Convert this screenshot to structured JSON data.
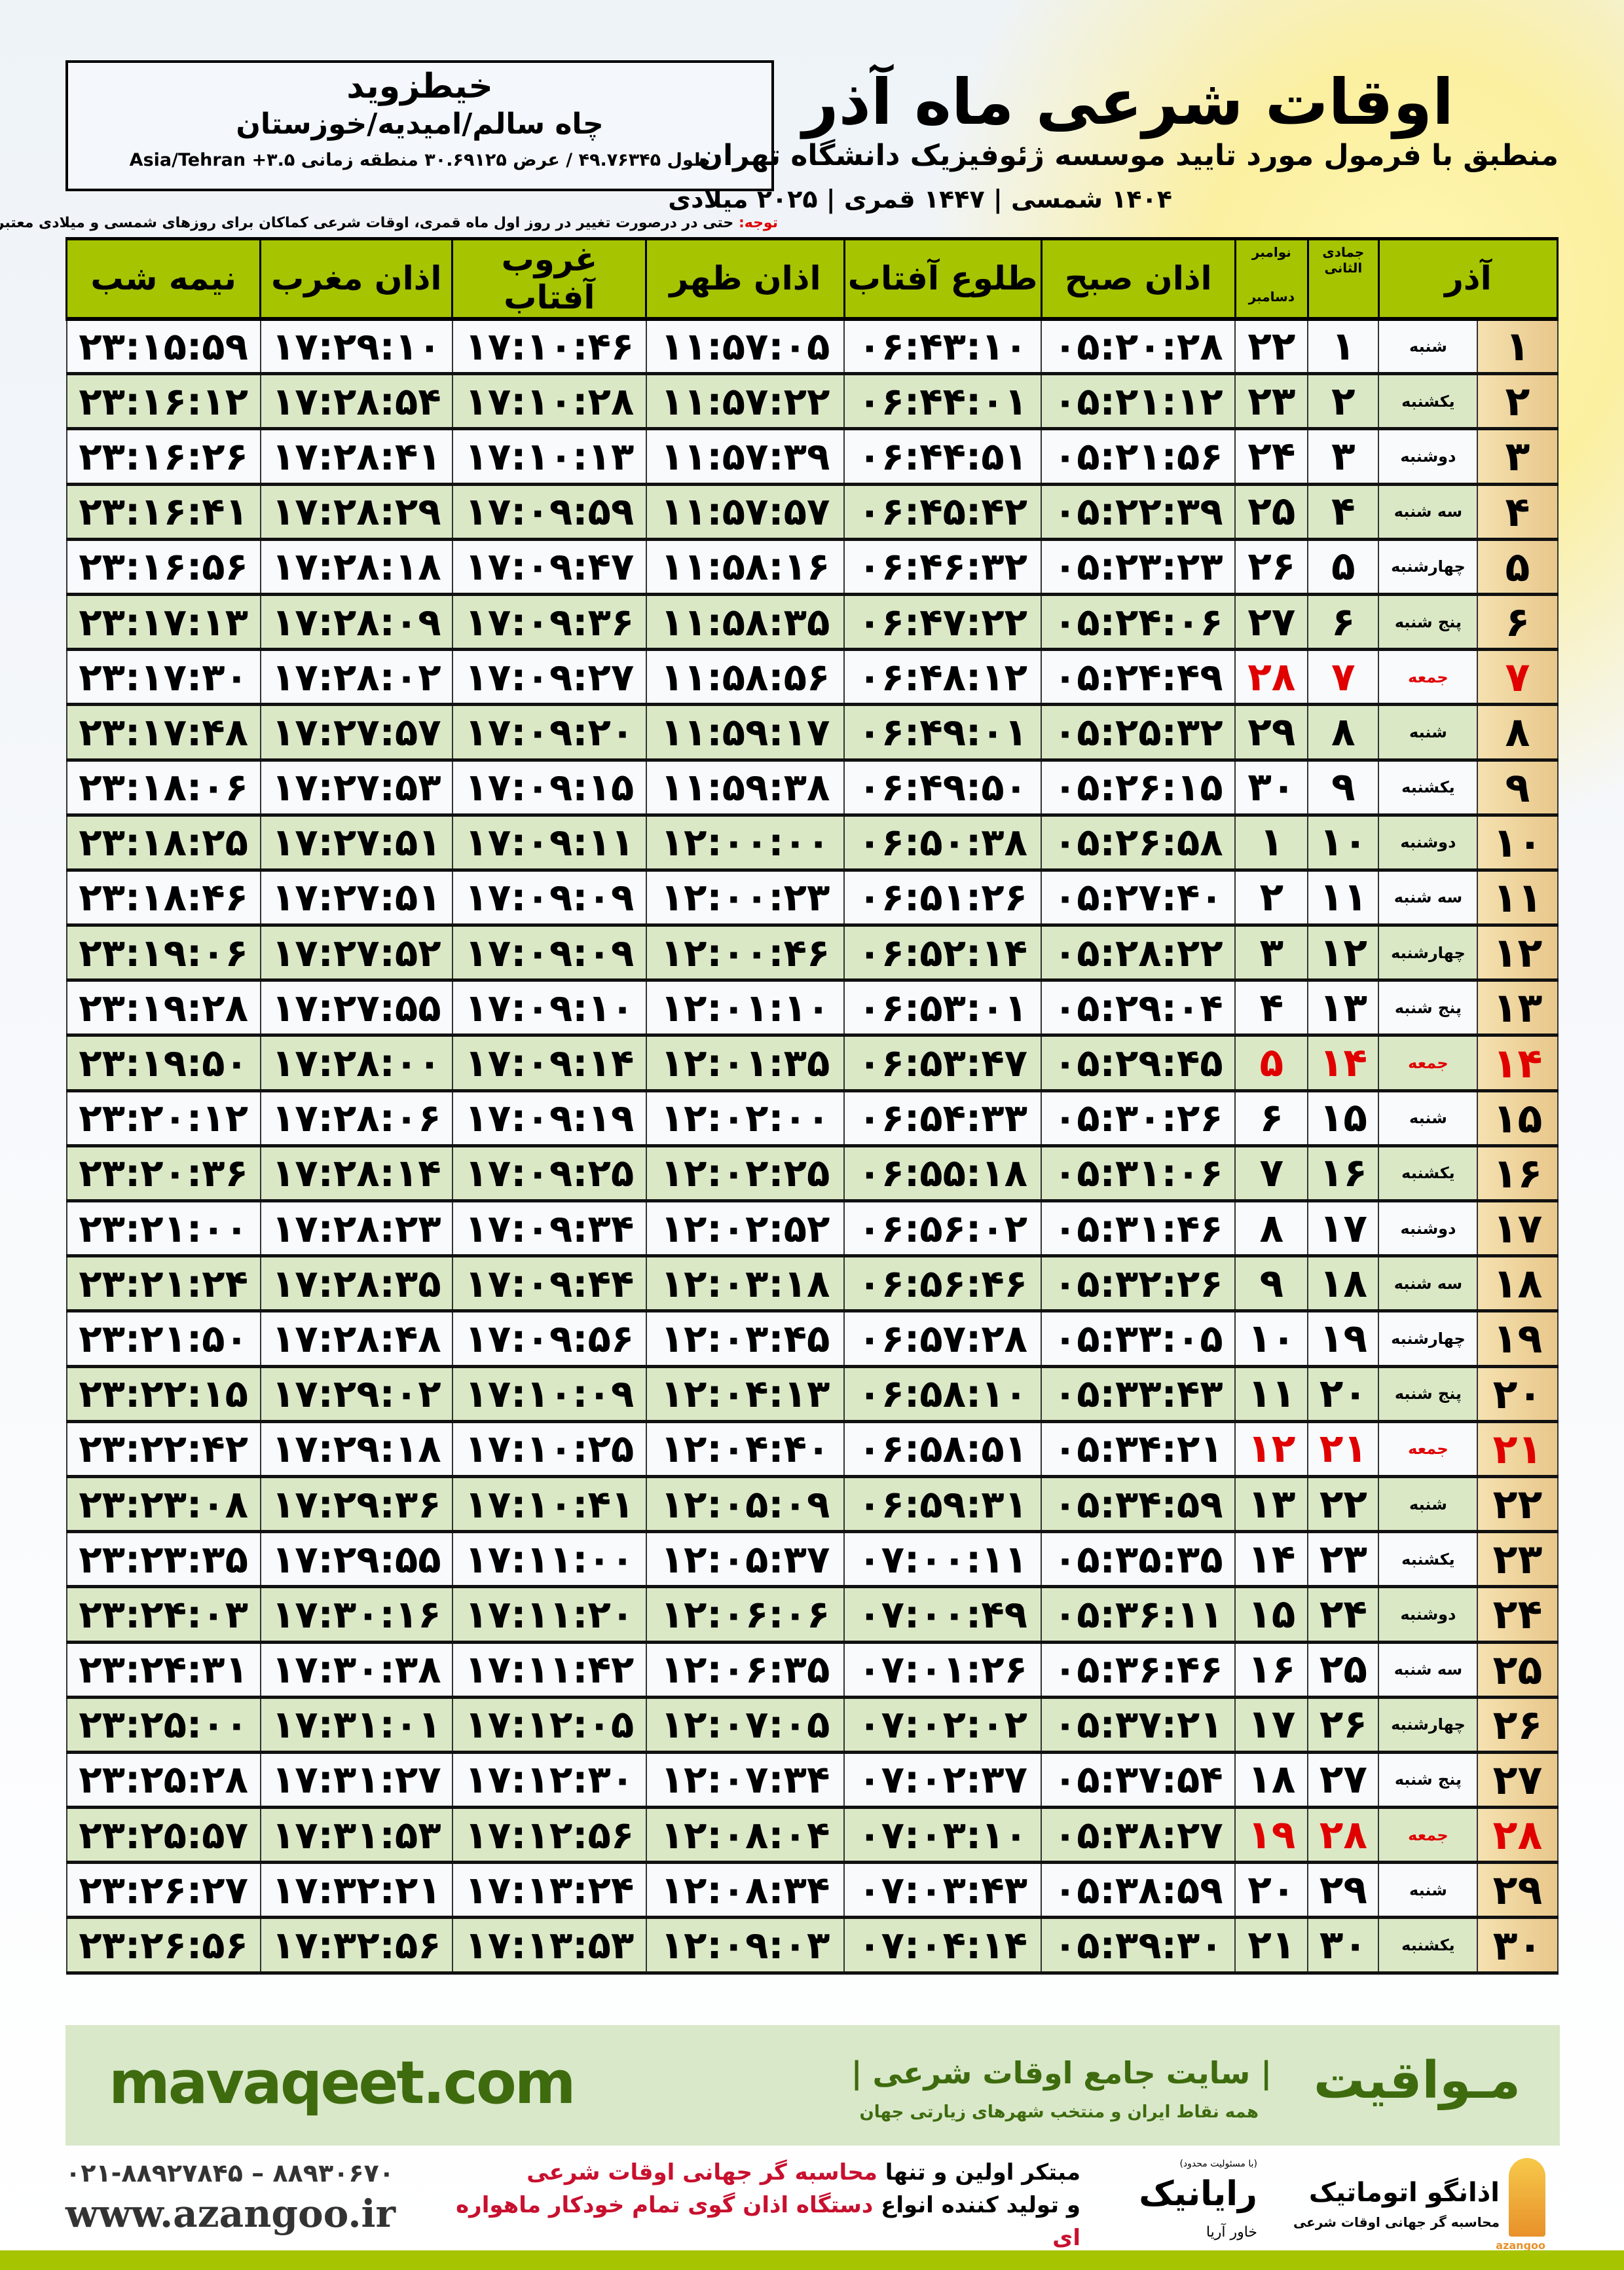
{
  "location": {
    "name": "خیطزوید",
    "region": "چاه سالم/امیدیه/خوزستان",
    "coords": "طول ۴۹.۷۶۳۴۵ / عرض ۳۰.۶۹۱۲۵ منطقه زمانی ۳.۵+ Asia/Tehran"
  },
  "header": {
    "title": "اوقات شرعی ماه آذر",
    "subtitle": "منطبق با فرمول مورد تایید موسسه ژئوفیزیک دانشگاه تهران",
    "dates": "۱۴۰۴ شمسی | ۱۴۴۷ قمری | ۲۰۲۵ میلادی"
  },
  "note": {
    "label": "توجه:",
    "text": " حتی در درصورت تغییر در روز اول ماه قمری، اوقات شرعی کماکان برای روزهای شمسی و میلادی معتبر است."
  },
  "table": {
    "headers": {
      "month": "آذر",
      "hijri": "جمادی الثانی",
      "greg": "نوامبر",
      "greg2": "دسامبر",
      "fajr": "اذان صبح",
      "sunrise": "طلوع آفتاب",
      "dhuhr": "اذان ظهر",
      "sunset": "غروب آفتاب",
      "maghrib": "اذان مغرب",
      "midnight": "نیمه شب"
    },
    "friday_color": "#e00000",
    "rows": [
      [
        "۱",
        "شنبه",
        "۱",
        "۲۲",
        "۰۵:۲۰:۲۸",
        "۰۶:۴۳:۱۰",
        "۱۱:۵۷:۰۵",
        "۱۷:۱۰:۴۶",
        "۱۷:۲۹:۱۰",
        "۲۳:۱۵:۵۹"
      ],
      [
        "۲",
        "یکشنبه",
        "۲",
        "۲۳",
        "۰۵:۲۱:۱۲",
        "۰۶:۴۴:۰۱",
        "۱۱:۵۷:۲۲",
        "۱۷:۱۰:۲۸",
        "۱۷:۲۸:۵۴",
        "۲۳:۱۶:۱۲"
      ],
      [
        "۳",
        "دوشنبه",
        "۳",
        "۲۴",
        "۰۵:۲۱:۵۶",
        "۰۶:۴۴:۵۱",
        "۱۱:۵۷:۳۹",
        "۱۷:۱۰:۱۳",
        "۱۷:۲۸:۴۱",
        "۲۳:۱۶:۲۶"
      ],
      [
        "۴",
        "سه شنبه",
        "۴",
        "۲۵",
        "۰۵:۲۲:۳۹",
        "۰۶:۴۵:۴۲",
        "۱۱:۵۷:۵۷",
        "۱۷:۰۹:۵۹",
        "۱۷:۲۸:۲۹",
        "۲۳:۱۶:۴۱"
      ],
      [
        "۵",
        "چهارشنبه",
        "۵",
        "۲۶",
        "۰۵:۲۳:۲۳",
        "۰۶:۴۶:۳۲",
        "۱۱:۵۸:۱۶",
        "۱۷:۰۹:۴۷",
        "۱۷:۲۸:۱۸",
        "۲۳:۱۶:۵۶"
      ],
      [
        "۶",
        "پنج شنبه",
        "۶",
        "۲۷",
        "۰۵:۲۴:۰۶",
        "۰۶:۴۷:۲۲",
        "۱۱:۵۸:۳۵",
        "۱۷:۰۹:۳۶",
        "۱۷:۲۸:۰۹",
        "۲۳:۱۷:۱۳"
      ],
      [
        "۷",
        "جمعه",
        "۷",
        "۲۸",
        "۰۵:۲۴:۴۹",
        "۰۶:۴۸:۱۲",
        "۱۱:۵۸:۵۶",
        "۱۷:۰۹:۲۷",
        "۱۷:۲۸:۰۲",
        "۲۳:۱۷:۳۰"
      ],
      [
        "۸",
        "شنبه",
        "۸",
        "۲۹",
        "۰۵:۲۵:۳۲",
        "۰۶:۴۹:۰۱",
        "۱۱:۵۹:۱۷",
        "۱۷:۰۹:۲۰",
        "۱۷:۲۷:۵۷",
        "۲۳:۱۷:۴۸"
      ],
      [
        "۹",
        "یکشنبه",
        "۹",
        "۳۰",
        "۰۵:۲۶:۱۵",
        "۰۶:۴۹:۵۰",
        "۱۱:۵۹:۳۸",
        "۱۷:۰۹:۱۵",
        "۱۷:۲۷:۵۳",
        "۲۳:۱۸:۰۶"
      ],
      [
        "۱۰",
        "دوشنبه",
        "۱۰",
        "۱",
        "۰۵:۲۶:۵۸",
        "۰۶:۵۰:۳۸",
        "۱۲:۰۰:۰۰",
        "۱۷:۰۹:۱۱",
        "۱۷:۲۷:۵۱",
        "۲۳:۱۸:۲۵"
      ],
      [
        "۱۱",
        "سه شنبه",
        "۱۱",
        "۲",
        "۰۵:۲۷:۴۰",
        "۰۶:۵۱:۲۶",
        "۱۲:۰۰:۲۳",
        "۱۷:۰۹:۰۹",
        "۱۷:۲۷:۵۱",
        "۲۳:۱۸:۴۶"
      ],
      [
        "۱۲",
        "چهارشنبه",
        "۱۲",
        "۳",
        "۰۵:۲۸:۲۲",
        "۰۶:۵۲:۱۴",
        "۱۲:۰۰:۴۶",
        "۱۷:۰۹:۰۹",
        "۱۷:۲۷:۵۲",
        "۲۳:۱۹:۰۶"
      ],
      [
        "۱۳",
        "پنج شنبه",
        "۱۳",
        "۴",
        "۰۵:۲۹:۰۴",
        "۰۶:۵۳:۰۱",
        "۱۲:۰۱:۱۰",
        "۱۷:۰۹:۱۰",
        "۱۷:۲۷:۵۵",
        "۲۳:۱۹:۲۸"
      ],
      [
        "۱۴",
        "جمعه",
        "۱۴",
        "۵",
        "۰۵:۲۹:۴۵",
        "۰۶:۵۳:۴۷",
        "۱۲:۰۱:۳۵",
        "۱۷:۰۹:۱۴",
        "۱۷:۲۸:۰۰",
        "۲۳:۱۹:۵۰"
      ],
      [
        "۱۵",
        "شنبه",
        "۱۵",
        "۶",
        "۰۵:۳۰:۲۶",
        "۰۶:۵۴:۳۳",
        "۱۲:۰۲:۰۰",
        "۱۷:۰۹:۱۹",
        "۱۷:۲۸:۰۶",
        "۲۳:۲۰:۱۲"
      ],
      [
        "۱۶",
        "یکشنبه",
        "۱۶",
        "۷",
        "۰۵:۳۱:۰۶",
        "۰۶:۵۵:۱۸",
        "۱۲:۰۲:۲۵",
        "۱۷:۰۹:۲۵",
        "۱۷:۲۸:۱۴",
        "۲۳:۲۰:۳۶"
      ],
      [
        "۱۷",
        "دوشنبه",
        "۱۷",
        "۸",
        "۰۵:۳۱:۴۶",
        "۰۶:۵۶:۰۲",
        "۱۲:۰۲:۵۲",
        "۱۷:۰۹:۳۴",
        "۱۷:۲۸:۲۳",
        "۲۳:۲۱:۰۰"
      ],
      [
        "۱۸",
        "سه شنبه",
        "۱۸",
        "۹",
        "۰۵:۳۲:۲۶",
        "۰۶:۵۶:۴۶",
        "۱۲:۰۳:۱۸",
        "۱۷:۰۹:۴۴",
        "۱۷:۲۸:۳۵",
        "۲۳:۲۱:۲۴"
      ],
      [
        "۱۹",
        "چهارشنبه",
        "۱۹",
        "۱۰",
        "۰۵:۳۳:۰۵",
        "۰۶:۵۷:۲۸",
        "۱۲:۰۳:۴۵",
        "۱۷:۰۹:۵۶",
        "۱۷:۲۸:۴۸",
        "۲۳:۲۱:۵۰"
      ],
      [
        "۲۰",
        "پنج شنبه",
        "۲۰",
        "۱۱",
        "۰۵:۳۳:۴۳",
        "۰۶:۵۸:۱۰",
        "۱۲:۰۴:۱۳",
        "۱۷:۱۰:۰۹",
        "۱۷:۲۹:۰۲",
        "۲۳:۲۲:۱۵"
      ],
      [
        "۲۱",
        "جمعه",
        "۲۱",
        "۱۲",
        "۰۵:۳۴:۲۱",
        "۰۶:۵۸:۵۱",
        "۱۲:۰۴:۴۰",
        "۱۷:۱۰:۲۵",
        "۱۷:۲۹:۱۸",
        "۲۳:۲۲:۴۲"
      ],
      [
        "۲۲",
        "شنبه",
        "۲۲",
        "۱۳",
        "۰۵:۳۴:۵۹",
        "۰۶:۵۹:۳۱",
        "۱۲:۰۵:۰۹",
        "۱۷:۱۰:۴۱",
        "۱۷:۲۹:۳۶",
        "۲۳:۲۳:۰۸"
      ],
      [
        "۲۳",
        "یکشنبه",
        "۲۳",
        "۱۴",
        "۰۵:۳۵:۳۵",
        "۰۷:۰۰:۱۱",
        "۱۲:۰۵:۳۷",
        "۱۷:۱۱:۰۰",
        "۱۷:۲۹:۵۵",
        "۲۳:۲۳:۳۵"
      ],
      [
        "۲۴",
        "دوشنبه",
        "۲۴",
        "۱۵",
        "۰۵:۳۶:۱۱",
        "۰۷:۰۰:۴۹",
        "۱۲:۰۶:۰۶",
        "۱۷:۱۱:۲۰",
        "۱۷:۳۰:۱۶",
        "۲۳:۲۴:۰۳"
      ],
      [
        "۲۵",
        "سه شنبه",
        "۲۵",
        "۱۶",
        "۰۵:۳۶:۴۶",
        "۰۷:۰۱:۲۶",
        "۱۲:۰۶:۳۵",
        "۱۷:۱۱:۴۲",
        "۱۷:۳۰:۳۸",
        "۲۳:۲۴:۳۱"
      ],
      [
        "۲۶",
        "چهارشنبه",
        "۲۶",
        "۱۷",
        "۰۵:۳۷:۲۱",
        "۰۷:۰۲:۰۲",
        "۱۲:۰۷:۰۵",
        "۱۷:۱۲:۰۵",
        "۱۷:۳۱:۰۱",
        "۲۳:۲۵:۰۰"
      ],
      [
        "۲۷",
        "پنج شنبه",
        "۲۷",
        "۱۸",
        "۰۵:۳۷:۵۴",
        "۰۷:۰۲:۳۷",
        "۱۲:۰۷:۳۴",
        "۱۷:۱۲:۳۰",
        "۱۷:۳۱:۲۷",
        "۲۳:۲۵:۲۸"
      ],
      [
        "۲۸",
        "جمعه",
        "۲۸",
        "۱۹",
        "۰۵:۳۸:۲۷",
        "۰۷:۰۳:۱۰",
        "۱۲:۰۸:۰۴",
        "۱۷:۱۲:۵۶",
        "۱۷:۳۱:۵۳",
        "۲۳:۲۵:۵۷"
      ],
      [
        "۲۹",
        "شنبه",
        "۲۹",
        "۲۰",
        "۰۵:۳۸:۵۹",
        "۰۷:۰۳:۴۳",
        "۱۲:۰۸:۳۴",
        "۱۷:۱۳:۲۴",
        "۱۷:۳۲:۲۱",
        "۲۳:۲۶:۲۷"
      ],
      [
        "۳۰",
        "یکشنبه",
        "۳۰",
        "۲۱",
        "۰۵:۳۹:۳۰",
        "۰۷:۰۴:۱۴",
        "۱۲:۰۹:۰۳",
        "۱۷:۱۳:۵۳",
        "۱۷:۳۲:۵۶",
        "۲۳:۲۶:۵۶"
      ]
    ]
  },
  "footer": {
    "brand": "مـواقیت",
    "tagline": "| سایت جامع اوقات شرعی |",
    "tagsub": "همه نقاط ایران و منتخب شهرهای زیارتی جهان",
    "site": "mavaqeet.com",
    "logo_azangoo": {
      "name": "اذانگو اتوماتیک",
      "sub": "محاسبه گر جهانی اوقات شرعی",
      "latin": "azangoo"
    },
    "logo_rayanik": {
      "top": "(با مسئولیت محدود)",
      "name": "رایانیک",
      "side": "خاور آریا"
    },
    "promo_line1_a": "مبتکر اولین و تنها ",
    "promo_line1_b": "محاسبه گر جهانی اوقات شرعی",
    "promo_line2_a": "و تولید کننده انواع ",
    "promo_line2_b": "دستگاه اذان گوی تمام خودکار ماهواره ای",
    "phone": "۰۲۱-۸۸۹۲۷۸۴۵ – ۸۸۹۳۰۶۷۰",
    "www": "www.azangoo.ir",
    "brand_color": "#3e6b0e",
    "accent_green": "#a6c400"
  }
}
